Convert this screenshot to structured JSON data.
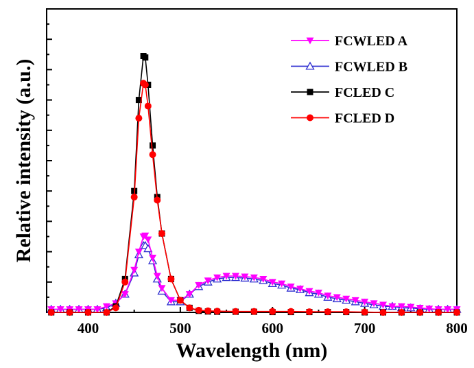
{
  "chart_data": {
    "type": "line",
    "title": "",
    "xlabel": "Wavelength (nm)",
    "ylabel": "Relative intensity (a.u.)",
    "xlim": [
      355,
      800
    ],
    "ylim": [
      0,
      100
    ],
    "x_ticks": [
      "400",
      "500",
      "600",
      "700",
      "800"
    ],
    "x_tick_values": [
      400,
      500,
      600,
      700,
      800
    ],
    "y_tick_labels_shown": false,
    "grid": false,
    "legend_position": "top-right",
    "series": [
      {
        "name": "FCWLED A",
        "color": "#ff00ff",
        "marker": "triangle-down-filled",
        "x": [
          360,
          370,
          380,
          390,
          400,
          410,
          420,
          430,
          440,
          450,
          455,
          460,
          462,
          465,
          470,
          475,
          480,
          490,
          500,
          510,
          520,
          530,
          540,
          550,
          560,
          570,
          580,
          590,
          600,
          610,
          620,
          630,
          640,
          650,
          660,
          670,
          680,
          690,
          700,
          710,
          720,
          730,
          740,
          750,
          760,
          770,
          780,
          790,
          800
        ],
        "y": [
          1,
          1,
          1,
          1,
          1,
          1,
          2,
          3,
          6,
          14,
          20,
          25,
          25.3,
          24,
          18,
          12,
          8,
          4,
          4,
          6,
          9,
          10.5,
          11.5,
          12,
          12,
          11.8,
          11.5,
          11,
          10,
          9.5,
          8.5,
          7.8,
          7,
          6.5,
          5.5,
          5,
          4.5,
          4,
          3.5,
          3,
          2.5,
          2,
          2,
          1.8,
          1.5,
          1.2,
          1,
          1,
          1
        ]
      },
      {
        "name": "FCWLED B",
        "color": "#2f2fd0",
        "marker": "triangle-up-open",
        "x": [
          360,
          370,
          380,
          390,
          400,
          410,
          420,
          430,
          440,
          450,
          455,
          460,
          462,
          465,
          470,
          475,
          480,
          490,
          500,
          510,
          520,
          530,
          540,
          550,
          560,
          570,
          580,
          590,
          600,
          610,
          620,
          630,
          640,
          650,
          660,
          670,
          680,
          690,
          700,
          710,
          720,
          730,
          740,
          750,
          760,
          770,
          780,
          790,
          800
        ],
        "y": [
          1,
          1,
          1,
          1,
          1,
          1,
          1.5,
          3,
          6,
          13,
          19,
          22,
          22,
          21,
          17,
          11,
          7,
          3.5,
          3.5,
          6,
          8.5,
          10,
          11,
          11.5,
          11.5,
          11.3,
          11,
          10.5,
          9.5,
          9,
          8,
          7.5,
          6.5,
          6,
          5,
          4.5,
          4,
          3.5,
          3,
          2.5,
          2,
          2,
          1.5,
          1.5,
          1.2,
          1,
          1,
          1,
          1
        ]
      },
      {
        "name": "FCLED C",
        "color": "#000000",
        "marker": "square-filled",
        "x": [
          360,
          380,
          400,
          420,
          430,
          440,
          450,
          455,
          460,
          462,
          465,
          470,
          475,
          480,
          490,
          500,
          510,
          520,
          530,
          540,
          560,
          580,
          600,
          620,
          640,
          660,
          680,
          700,
          720,
          740,
          760,
          780,
          800
        ],
        "y": [
          0,
          0,
          0,
          0,
          2,
          11,
          40,
          70,
          84.5,
          84,
          75,
          55,
          38,
          26,
          11,
          4,
          1.5,
          0.5,
          0.3,
          0.2,
          0.2,
          0.2,
          0.1,
          0.1,
          0.1,
          0.1,
          0.1,
          0,
          0,
          0,
          0,
          0,
          0
        ]
      },
      {
        "name": "FCLED D",
        "color": "#ff0000",
        "marker": "circle-filled",
        "x": [
          360,
          380,
          400,
          420,
          430,
          440,
          450,
          455,
          460,
          462,
          465,
          470,
          475,
          480,
          490,
          500,
          510,
          520,
          530,
          540,
          560,
          580,
          600,
          620,
          640,
          660,
          680,
          700,
          720,
          740,
          760,
          780,
          800
        ],
        "y": [
          0,
          0,
          0,
          0,
          1.5,
          10,
          38,
          64,
          75.5,
          75,
          68,
          52,
          37,
          26,
          11,
          4,
          1.5,
          0.7,
          0.5,
          0.4,
          0.3,
          0.3,
          0.3,
          0.3,
          0.2,
          0.2,
          0.2,
          0.1,
          0,
          0,
          0,
          0,
          0
        ]
      }
    ]
  }
}
